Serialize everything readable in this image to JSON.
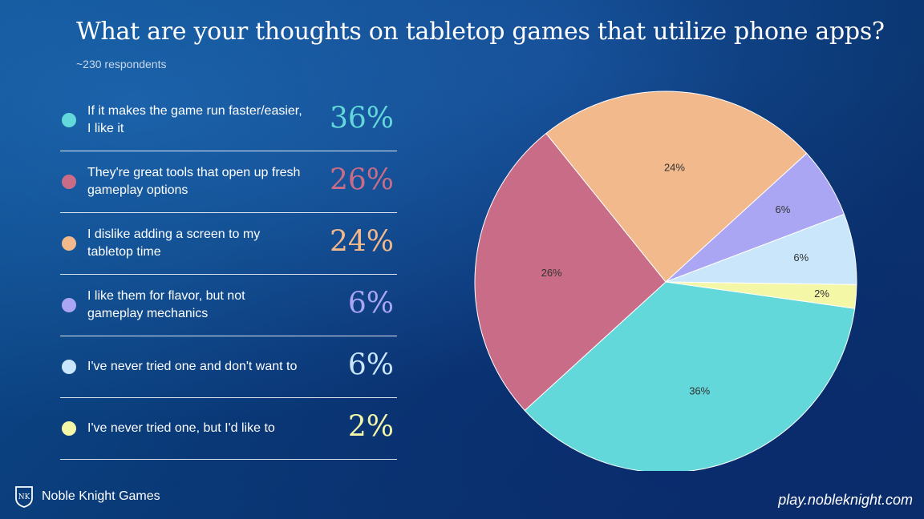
{
  "header": {
    "title": "What are your thoughts on tabletop games that utilize phone apps?",
    "subtitle": "~230 respondents"
  },
  "legend": [
    {
      "label": "If it makes the game run faster/easier, I like it",
      "pct": "36%",
      "color": "#62d8da"
    },
    {
      "label": "They're great tools that open up fresh gameplay options",
      "pct": "26%",
      "color": "#c96c87"
    },
    {
      "label": "I dislike adding a screen to my tabletop time",
      "pct": "24%",
      "color": "#f2b98c"
    },
    {
      "label": "I like them for flavor, but not gameplay mechanics",
      "pct": "6%",
      "color": "#aaa6f4"
    },
    {
      "label": "I've never tried one and don't want to",
      "pct": "6%",
      "color": "#c9e6fb"
    },
    {
      "label": "I've never tried one, but I'd like to",
      "pct": "2%",
      "color": "#f4f7a6"
    }
  ],
  "chart_data": {
    "type": "pie",
    "title": "What are your thoughts on tabletop games that utilize phone apps?",
    "categories": [
      "If it makes the game run faster/easier, I like it",
      "They're great tools that open up fresh gameplay options",
      "I dislike adding a screen to my tabletop time",
      "I like them for flavor, but not gameplay mechanics",
      "I've never tried one and don't want to",
      "I've never tried one, but I'd like to"
    ],
    "values": [
      36,
      26,
      24,
      6,
      6,
      2
    ],
    "data_labels": [
      "36%",
      "26%",
      "24%",
      "6%",
      "6%",
      "2%"
    ],
    "colors": [
      "#62d8da",
      "#c96c87",
      "#f2b98c",
      "#aaa6f4",
      "#c9e6fb",
      "#f4f7a6"
    ],
    "start_angle_deg": 98,
    "direction": "clockwise"
  },
  "footer": {
    "brand": "Noble Knight Games",
    "brand_logo": "NK",
    "url": "play.nobleknight.com"
  }
}
